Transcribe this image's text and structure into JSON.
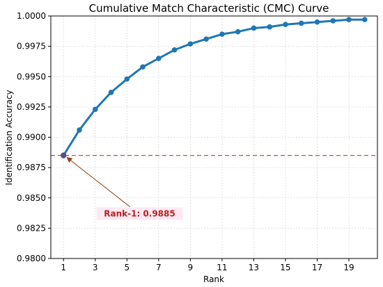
{
  "chart_data": {
    "type": "line",
    "title": "Cumulative Match Characteristic (CMC) Curve",
    "xlabel": "Rank",
    "ylabel": "Identification Accuracy",
    "x": [
      1,
      2,
      3,
      4,
      5,
      6,
      7,
      8,
      9,
      10,
      11,
      12,
      13,
      14,
      15,
      16,
      17,
      18,
      19,
      20
    ],
    "series": [
      {
        "values": [
          0.9885,
          0.9906,
          0.9923,
          0.9937,
          0.9948,
          0.9958,
          0.9965,
          0.9972,
          0.9977,
          0.9981,
          0.9985,
          0.9987,
          0.999,
          0.9991,
          0.9993,
          0.9994,
          0.9995,
          0.9996,
          0.9997,
          0.9997
        ],
        "color": "#1f77b4"
      }
    ],
    "xlim": [
      0.2,
      20.8
    ],
    "ylim": [
      0.98,
      1.0
    ],
    "xticks": [
      1,
      3,
      5,
      7,
      9,
      11,
      13,
      15,
      17,
      19
    ],
    "yticks": [
      "0.9800",
      "0.9825",
      "0.9850",
      "0.9875",
      "0.9900",
      "0.9925",
      "0.9950",
      "0.9975",
      "1.0000"
    ],
    "grid": true,
    "reference_line": {
      "y": 0.9885,
      "style": "dashed",
      "color": "#c0392b"
    },
    "annotation": {
      "text": "Rank-1: 0.9885",
      "point": {
        "x": 1,
        "y": 0.9885
      },
      "text_at": {
        "x": 5.8,
        "y": 0.9837
      },
      "color": "#b22222"
    }
  }
}
